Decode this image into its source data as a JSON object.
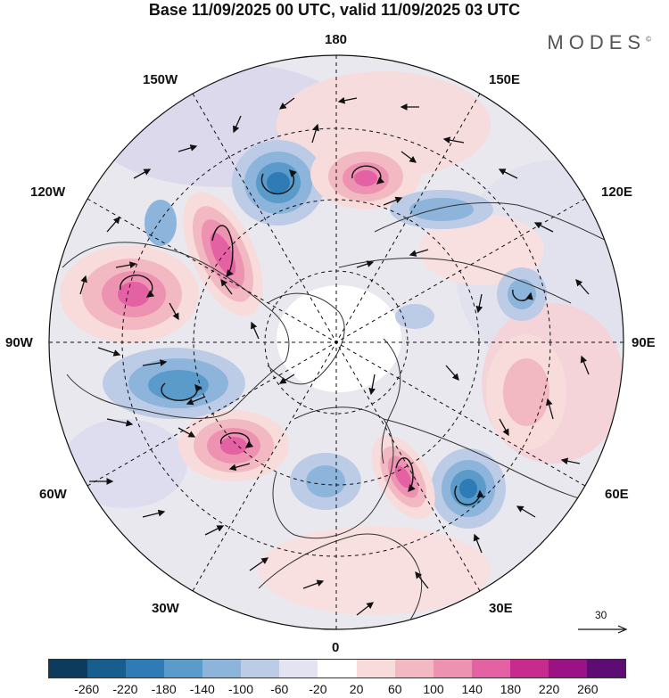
{
  "title": "Base 11/09/2025 00 UTC, valid 11/09/2025 03 UTC",
  "brand": "MODES",
  "brand_mark": "©",
  "longitude_labels": {
    "top": "180",
    "top_left": "150W",
    "top_right": "150E",
    "upper_left": "120W",
    "upper_right": "120E",
    "left": "90W",
    "right": "90E",
    "lower_left": "60W",
    "lower_right": "60E",
    "bottom_left": "30W",
    "bottom_right": "30E",
    "bottom": "0"
  },
  "vector_scale": "30",
  "colorbar": {
    "colors": [
      "#0c3b5e",
      "#175e8f",
      "#2f7bb5",
      "#5a9bc9",
      "#8db4da",
      "#bccbe6",
      "#e4e3f1",
      "#ffffff",
      "#f8dcdc",
      "#f2b9c2",
      "#ee92b2",
      "#e461a3",
      "#c82b8e",
      "#9a1283",
      "#5d0c74"
    ],
    "ticks": [
      "-260",
      "-220",
      "-180",
      "-140",
      "-100",
      "-60",
      "-20",
      "20",
      "60",
      "100",
      "140",
      "180",
      "220",
      "260"
    ]
  },
  "anomaly_centers": [
    {
      "sign": "negative",
      "level": -220
    },
    {
      "sign": "positive",
      "level": 180
    },
    {
      "sign": "positive",
      "level": 200
    },
    {
      "sign": "positive",
      "level": 160
    },
    {
      "sign": "negative",
      "level": -180
    },
    {
      "sign": "positive",
      "level": 180
    },
    {
      "sign": "negative",
      "level": -200
    },
    {
      "sign": "positive",
      "level": 180
    },
    {
      "sign": "negative",
      "level": -140
    },
    {
      "sign": "positive",
      "level": 80
    },
    {
      "sign": "negative",
      "level": -100
    }
  ]
}
